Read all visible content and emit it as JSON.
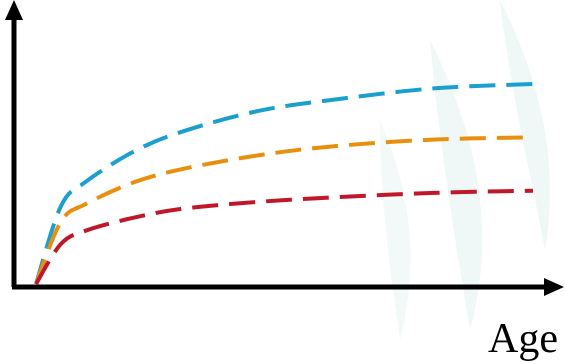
{
  "chart_data": {
    "type": "line",
    "xlabel": "Age",
    "ylabel": "",
    "axes": {
      "x_ticks": "none",
      "y_ticks": "none",
      "arrows": true
    },
    "grid": false,
    "legend": "none",
    "x": [
      0,
      0.05,
      0.1,
      0.2,
      0.3,
      0.45,
      0.6,
      0.8,
      1.0
    ],
    "series": [
      {
        "color": "#1a9fcf",
        "dash": "dashed",
        "values": [
          0,
          0.35,
          0.46,
          0.6,
          0.69,
          0.78,
          0.83,
          0.88,
          0.9
        ]
      },
      {
        "color": "#e8900e",
        "dash": "dashed",
        "values": [
          0,
          0.28,
          0.36,
          0.46,
          0.52,
          0.58,
          0.62,
          0.65,
          0.66
        ]
      },
      {
        "color": "#c0172b",
        "dash": "dashed",
        "values": [
          0,
          0.18,
          0.24,
          0.3,
          0.34,
          0.37,
          0.39,
          0.41,
          0.42
        ]
      }
    ]
  }
}
